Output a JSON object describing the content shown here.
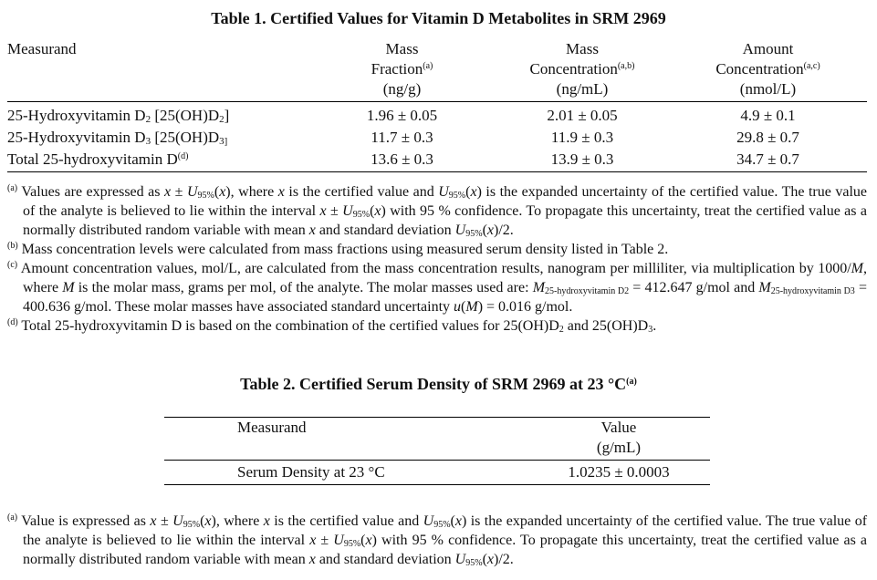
{
  "table1": {
    "title": "Table 1.  Certified Values for Vitamin D Metabolites in SRM 2969",
    "headers": [
      [
        {
          "t": "Measurand"
        }
      ],
      [
        {
          "t": "Mass"
        },
        {
          "br": 1
        },
        {
          "t": "Fraction"
        },
        {
          "sup": "(a)"
        },
        {
          "br": 1
        },
        {
          "t": "(ng/g)"
        }
      ],
      [
        {
          "t": "Mass"
        },
        {
          "br": 1
        },
        {
          "t": "Concentration"
        },
        {
          "sup": "(a,b)"
        },
        {
          "br": 1
        },
        {
          "t": "(ng/mL)"
        }
      ],
      [
        {
          "t": "Amount"
        },
        {
          "br": 1
        },
        {
          "t": "Concentration"
        },
        {
          "sup": "(a,c)"
        },
        {
          "br": 1
        },
        {
          "t": "(nmol/L)"
        }
      ]
    ],
    "rows": [
      {
        "measurand": [
          {
            "t": "25-Hydroxyvitamin D"
          },
          {
            "sub": "2"
          },
          {
            "t": " [25(OH)D"
          },
          {
            "sub": "2"
          },
          {
            "t": "]"
          }
        ],
        "mass_fraction": "1.96 ± 0.05",
        "mass_concentration": "2.01  ± 0.05",
        "amount_concentration": "4.9  ± 0.1"
      },
      {
        "measurand": [
          {
            "t": "25-Hydroxyvitamin D"
          },
          {
            "sub": "3"
          },
          {
            "t": " [25(OH)D"
          },
          {
            "sub": "3]"
          }
        ],
        "mass_fraction": "11.7  ± 0.3",
        "mass_concentration": "11.9   ± 0.3",
        "amount_concentration": "29.8 ± 0.7"
      },
      {
        "measurand": [
          {
            "t": "Total 25-hydroxyvitamin D"
          },
          {
            "sup": "(d)"
          }
        ],
        "mass_fraction": "13.6  ± 0.3",
        "mass_concentration": "13.9   ± 0.3",
        "amount_concentration": "34.7 ± 0.7"
      }
    ],
    "footnotes": [
      [
        {
          "sup": "(a)"
        },
        {
          "t": " Values are expressed as "
        },
        {
          "i": "x"
        },
        {
          "t": " ± "
        },
        {
          "i": "U"
        },
        {
          "sub": "95%"
        },
        {
          "t": "("
        },
        {
          "i": "x"
        },
        {
          "t": "), where "
        },
        {
          "i": "x"
        },
        {
          "t": " is the certified value and "
        },
        {
          "i": "U"
        },
        {
          "sub": "95%"
        },
        {
          "t": "("
        },
        {
          "i": "x"
        },
        {
          "t": ") is the expanded uncertainty of the certified value. The true value of the analyte is believed to lie within the interval "
        },
        {
          "i": "x"
        },
        {
          "t": " ± "
        },
        {
          "i": "U"
        },
        {
          "sub": "95%"
        },
        {
          "t": "("
        },
        {
          "i": "x"
        },
        {
          "t": ") with 95 % confidence.  To propagate this uncertainty, treat the certified value as a normally distributed random variable with mean "
        },
        {
          "i": "x"
        },
        {
          "t": " and standard deviation "
        },
        {
          "i": "U"
        },
        {
          "sub": "95%"
        },
        {
          "t": "("
        },
        {
          "i": "x"
        },
        {
          "t": ")/2."
        }
      ],
      [
        {
          "sup": "(b)"
        },
        {
          "t": " Mass concentration levels were calculated from mass fractions using measured serum density listed in Table 2."
        }
      ],
      [
        {
          "sup": "(c)"
        },
        {
          "t": " Amount concentration values, mol/L, are calculated from the mass concentration results, nanogram per milliliter, via multiplication by 1000/"
        },
        {
          "i": "M"
        },
        {
          "t": ", where "
        },
        {
          "i": "M"
        },
        {
          "t": " is the molar mass, grams per mol, of the analyte.  The molar masses used are: "
        },
        {
          "i": "M"
        },
        {
          "sub": "25-hydroxyvitamin D2"
        },
        {
          "t": " = 412.647 g/mol and "
        },
        {
          "i": "M"
        },
        {
          "sub": "25-hydroxyvitamin D3"
        },
        {
          "t": " = 400.636 g/mol.  These molar masses have associated standard uncertainty "
        },
        {
          "i": "u"
        },
        {
          "t": "("
        },
        {
          "i": "M"
        },
        {
          "t": ") = 0.016 g/mol."
        }
      ],
      [
        {
          "sup": "(d)"
        },
        {
          "t": " Total 25-hydroxyvitamin D is based on the combination of the certified values for 25(OH)D"
        },
        {
          "sub": "2"
        },
        {
          "t": " and 25(OH)D"
        },
        {
          "sub": "3"
        },
        {
          "t": "."
        }
      ]
    ]
  },
  "table2": {
    "title": [
      {
        "t": "Table 2.  Certified Serum Density of SRM 2969 at 23 °C"
      },
      {
        "sup": "(a)"
      }
    ],
    "headers": {
      "measurand": "Measurand",
      "value": [
        {
          "t": "Value"
        },
        {
          "br": 1
        },
        {
          "t": "(g/mL)"
        }
      ]
    },
    "rows": [
      {
        "measurand": "Serum Density at 23 °C",
        "value": "1.0235  ± 0.0003"
      }
    ],
    "footnotes": [
      [
        {
          "sup": "(a)"
        },
        {
          "t": " Value is expressed as "
        },
        {
          "i": "x"
        },
        {
          "t": " ± "
        },
        {
          "i": "U"
        },
        {
          "sub": "95%"
        },
        {
          "t": "("
        },
        {
          "i": "x"
        },
        {
          "t": "), where "
        },
        {
          "i": "x"
        },
        {
          "t": " is the certified value and "
        },
        {
          "i": "U"
        },
        {
          "sub": "95%"
        },
        {
          "t": "("
        },
        {
          "i": "x"
        },
        {
          "t": ") is the expanded uncertainty of the certified value. The true value of the analyte is believed to lie within the interval "
        },
        {
          "i": "x"
        },
        {
          "t": " ± "
        },
        {
          "i": "U"
        },
        {
          "sub": "95%"
        },
        {
          "t": "("
        },
        {
          "i": "x"
        },
        {
          "t": ") with 95 % confidence.  To propagate this uncertainty, treat the certified value as a normally distributed random variable with mean "
        },
        {
          "i": "x"
        },
        {
          "t": " and standard deviation "
        },
        {
          "i": "U"
        },
        {
          "sub": "95%"
        },
        {
          "t": "("
        },
        {
          "i": "x"
        },
        {
          "t": ")/2."
        }
      ]
    ]
  }
}
